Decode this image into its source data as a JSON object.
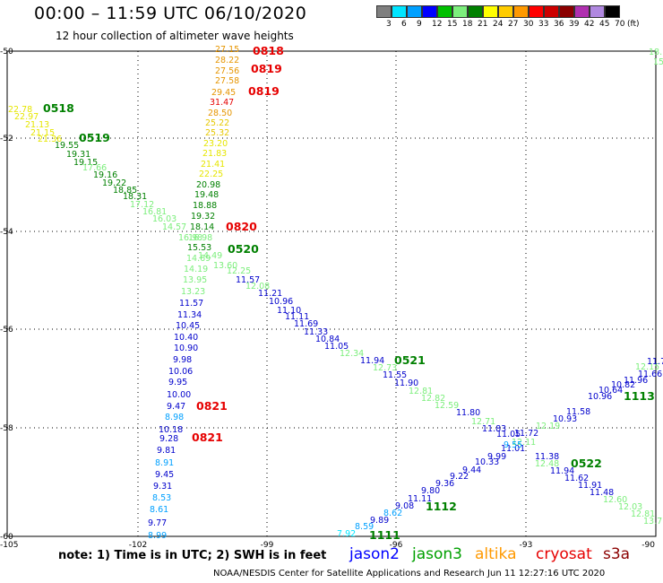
{
  "header": {
    "title": "00:00 – 11:59 UTC 06/10/2020",
    "subtitle": "12 hour collection of altimeter wave heights"
  },
  "colorbar": {
    "labels": [
      "3",
      "6",
      "9",
      "12",
      "15",
      "18",
      "21",
      "24",
      "27",
      "30",
      "33",
      "36",
      "39",
      "42",
      "45",
      "70",
      "(ft)"
    ],
    "colors": [
      "#7f7f7f",
      "#00e5ff",
      "#00a0ff",
      "#0000ff",
      "#00c000",
      "#7cee7c",
      "#008000",
      "#ffff00",
      "#ffcc00",
      "#ff9900",
      "#ff0000",
      "#cc0000",
      "#8b0000",
      "#b030b0",
      "#b088e0",
      "#000000"
    ]
  },
  "axes": {
    "lon_labels": [
      "-105",
      "-102",
      "-99",
      "-96",
      "-93",
      "-90"
    ],
    "lat_labels": [
      "-50",
      "-52",
      "-54",
      "-56",
      "-58",
      "-60"
    ]
  },
  "labels": [
    {
      "t": "27.15",
      "c": "#e69500"
    },
    {
      "t": "28.22",
      "c": "#e69500"
    },
    {
      "t": "27.56",
      "c": "#e69500"
    },
    {
      "t": "27.58",
      "c": "#e69500"
    },
    {
      "t": "29.45",
      "c": "#e69500"
    },
    {
      "t": "31.47",
      "c": "#e60000"
    },
    {
      "t": "28.50",
      "c": "#e69500"
    },
    {
      "t": "25.22",
      "c": "#e6c800"
    },
    {
      "t": "25.32",
      "c": "#e6c800"
    },
    {
      "t": "23.20",
      "c": "#e6e600"
    },
    {
      "t": "21.83",
      "c": "#e6e600"
    },
    {
      "t": "21.41",
      "c": "#e6e600"
    },
    {
      "t": "22.25",
      "c": "#e6e600"
    },
    {
      "t": "20.98",
      "c": "#008000"
    },
    {
      "t": "19.48",
      "c": "#008000"
    },
    {
      "t": "18.88",
      "c": "#008000"
    },
    {
      "t": "19.32",
      "c": "#008000"
    },
    {
      "t": "18.14",
      "c": "#008000"
    },
    {
      "t": "16.98",
      "c": "#7cee7c"
    },
    {
      "t": "15.53",
      "c": "#008000"
    },
    {
      "t": "14.69",
      "c": "#7cee7c"
    },
    {
      "t": "14.19",
      "c": "#7cee7c"
    },
    {
      "t": "13.95",
      "c": "#7cee7c"
    },
    {
      "t": "13.23",
      "c": "#7cee7c"
    },
    {
      "t": "11.57",
      "c": "#0000cc"
    },
    {
      "t": "11.34",
      "c": "#0000cc"
    },
    {
      "t": "10.45",
      "c": "#0000cc"
    },
    {
      "t": "10.40",
      "c": "#0000cc"
    },
    {
      "t": "10.90",
      "c": "#0000cc"
    },
    {
      "t": "9.98",
      "c": "#0000cc"
    },
    {
      "t": "10.06",
      "c": "#0000cc"
    },
    {
      "t": "9.95",
      "c": "#0000cc"
    },
    {
      "t": "10.00",
      "c": "#0000cc"
    },
    {
      "t": "9.47",
      "c": "#0000cc"
    },
    {
      "t": "8.98",
      "c": "#00a0ff"
    },
    {
      "t": "10.18",
      "c": "#0000cc"
    },
    {
      "t": "9.28",
      "c": "#0000cc"
    },
    {
      "t": "9.81",
      "c": "#0000cc"
    },
    {
      "t": "8.91",
      "c": "#00a0ff"
    },
    {
      "t": "9.45",
      "c": "#0000cc"
    },
    {
      "t": "9.31",
      "c": "#0000cc"
    },
    {
      "t": "8.53",
      "c": "#00a0ff"
    },
    {
      "t": "8.61",
      "c": "#00a0ff"
    },
    {
      "t": "9.77",
      "c": "#0000cc"
    },
    {
      "t": "8.99",
      "c": "#00a0ff"
    },
    {
      "t": "22.78",
      "c": "#e6e600"
    },
    {
      "t": "22.97",
      "c": "#e6e600"
    },
    {
      "t": "21.13",
      "c": "#e6e600"
    },
    {
      "t": "21.15",
      "c": "#e6e600"
    },
    {
      "t": "21.36",
      "c": "#e6e600"
    },
    {
      "t": "19.55",
      "c": "#008000"
    },
    {
      "t": "19.31",
      "c": "#008000"
    },
    {
      "t": "19.15",
      "c": "#008000"
    },
    {
      "t": "17.66",
      "c": "#7cee7c"
    },
    {
      "t": "19.16",
      "c": "#008000"
    },
    {
      "t": "19.22",
      "c": "#008000"
    },
    {
      "t": "18.85",
      "c": "#008000"
    },
    {
      "t": "18.31",
      "c": "#008000"
    },
    {
      "t": "17.12",
      "c": "#7cee7c"
    },
    {
      "t": "16.81",
      "c": "#7cee7c"
    },
    {
      "t": "16.03",
      "c": "#7cee7c"
    },
    {
      "t": "14.57",
      "c": "#7cee7c"
    },
    {
      "t": "16.98",
      "c": "#7cee7c"
    },
    {
      "t": "14.49",
      "c": "#7cee7c"
    },
    {
      "t": "13.60",
      "c": "#7cee7c"
    },
    {
      "t": "12.25",
      "c": "#7cee7c"
    },
    {
      "t": "12.08",
      "c": "#7cee7c"
    },
    {
      "t": "11.57",
      "c": "#0000cc"
    },
    {
      "t": "11.21",
      "c": "#0000cc"
    },
    {
      "t": "10.96",
      "c": "#0000cc"
    },
    {
      "t": "11.10",
      "c": "#0000cc"
    },
    {
      "t": "11.11",
      "c": "#0000cc"
    },
    {
      "t": "11.69",
      "c": "#0000cc"
    },
    {
      "t": "11.33",
      "c": "#0000cc"
    },
    {
      "t": "10.84",
      "c": "#0000cc"
    },
    {
      "t": "11.05",
      "c": "#0000cc"
    },
    {
      "t": "12.34",
      "c": "#7cee7c"
    },
    {
      "t": "11.94",
      "c": "#0000cc"
    },
    {
      "t": "12.73",
      "c": "#7cee7c"
    },
    {
      "t": "11.55",
      "c": "#0000cc"
    },
    {
      "t": "11.90",
      "c": "#0000cc"
    },
    {
      "t": "12.81",
      "c": "#7cee7c"
    },
    {
      "t": "12.82",
      "c": "#7cee7c"
    },
    {
      "t": "12.59",
      "c": "#7cee7c"
    },
    {
      "t": "11.80",
      "c": "#0000cc"
    },
    {
      "t": "12.71",
      "c": "#7cee7c"
    },
    {
      "t": "11.83",
      "c": "#0000cc"
    },
    {
      "t": "11.05",
      "c": "#0000cc"
    },
    {
      "t": "12.11",
      "c": "#7cee7c"
    },
    {
      "t": "11.01",
      "c": "#0000cc"
    },
    {
      "t": "9.55",
      "c": "#00a0ff"
    },
    {
      "t": "11.38",
      "c": "#0000cc"
    },
    {
      "t": "12.48",
      "c": "#7cee7c"
    },
    {
      "t": "11.94",
      "c": "#0000cc"
    },
    {
      "t": "11.62",
      "c": "#0000cc"
    },
    {
      "t": "11.91",
      "c": "#0000cc"
    },
    {
      "t": "11.48",
      "c": "#0000cc"
    },
    {
      "t": "12.60",
      "c": "#7cee7c"
    },
    {
      "t": "12.03",
      "c": "#7cee7c"
    },
    {
      "t": "12.81",
      "c": "#7cee7c"
    },
    {
      "t": "13.7",
      "c": "#7cee7c"
    },
    {
      "t": "7.92",
      "c": "#00e5ff"
    },
    {
      "t": "8.59",
      "c": "#00a0ff"
    },
    {
      "t": "9.89",
      "c": "#0000cc"
    },
    {
      "t": "8.62",
      "c": "#00a0ff"
    },
    {
      "t": "9.08",
      "c": "#0000cc"
    },
    {
      "t": "11.11",
      "c": "#0000cc"
    },
    {
      "t": "9.80",
      "c": "#0000cc"
    },
    {
      "t": "9.36",
      "c": "#0000cc"
    },
    {
      "t": "9.22",
      "c": "#0000cc"
    },
    {
      "t": "9.44",
      "c": "#0000cc"
    },
    {
      "t": "10.33",
      "c": "#0000cc"
    },
    {
      "t": "9.99",
      "c": "#0000cc"
    },
    {
      "t": "11.72",
      "c": "#0000cc"
    },
    {
      "t": "12.19",
      "c": "#7cee7c"
    },
    {
      "t": "10.93",
      "c": "#0000cc"
    },
    {
      "t": "11.58",
      "c": "#0000cc"
    },
    {
      "t": "10.96",
      "c": "#0000cc"
    },
    {
      "t": "10.64",
      "c": "#0000cc"
    },
    {
      "t": "10.82",
      "c": "#0000cc"
    },
    {
      "t": "11.96",
      "c": "#0000cc"
    },
    {
      "t": "11.66",
      "c": "#0000cc"
    },
    {
      "t": "12.15",
      "c": "#7cee7c"
    },
    {
      "t": "11.7",
      "c": "#0000cc"
    },
    {
      "t": "18.",
      "c": "#7cee7c"
    },
    {
      "t": "15",
      "c": "#7cee7c"
    }
  ],
  "pass_ids": [
    {
      "t": "0818",
      "c": "#e60000"
    },
    {
      "t": "0819",
      "c": "#e60000"
    },
    {
      "t": "0819",
      "c": "#e60000"
    },
    {
      "t": "0820",
      "c": "#e60000"
    },
    {
      "t": "0821",
      "c": "#e60000"
    },
    {
      "t": "0821",
      "c": "#e60000"
    },
    {
      "t": "0518",
      "c": "#008000"
    },
    {
      "t": "0519",
      "c": "#008000"
    },
    {
      "t": "0520",
      "c": "#008000"
    },
    {
      "t": "0521",
      "c": "#008000"
    },
    {
      "t": "0522",
      "c": "#008000"
    },
    {
      "t": "1112",
      "c": "#008000"
    },
    {
      "t": "1111",
      "c": "#008000"
    },
    {
      "t": "1113",
      "c": "#008000"
    }
  ],
  "note": "note: 1) Time is in UTC; 2) SWH is in feet",
  "satellites": [
    {
      "name": "jason2",
      "color": "#0000ff"
    },
    {
      "name": "jason3",
      "color": "#00a000"
    },
    {
      "name": "altika",
      "color": "#ff9900"
    },
    {
      "name": "cryosat",
      "color": "#e60000"
    },
    {
      "name": "s3a",
      "color": "#8b0000"
    }
  ],
  "credit": "NOAA/NESDIS Center for Satellite Applications and Research   Jun 11 12:27:16 UTC 2020"
}
